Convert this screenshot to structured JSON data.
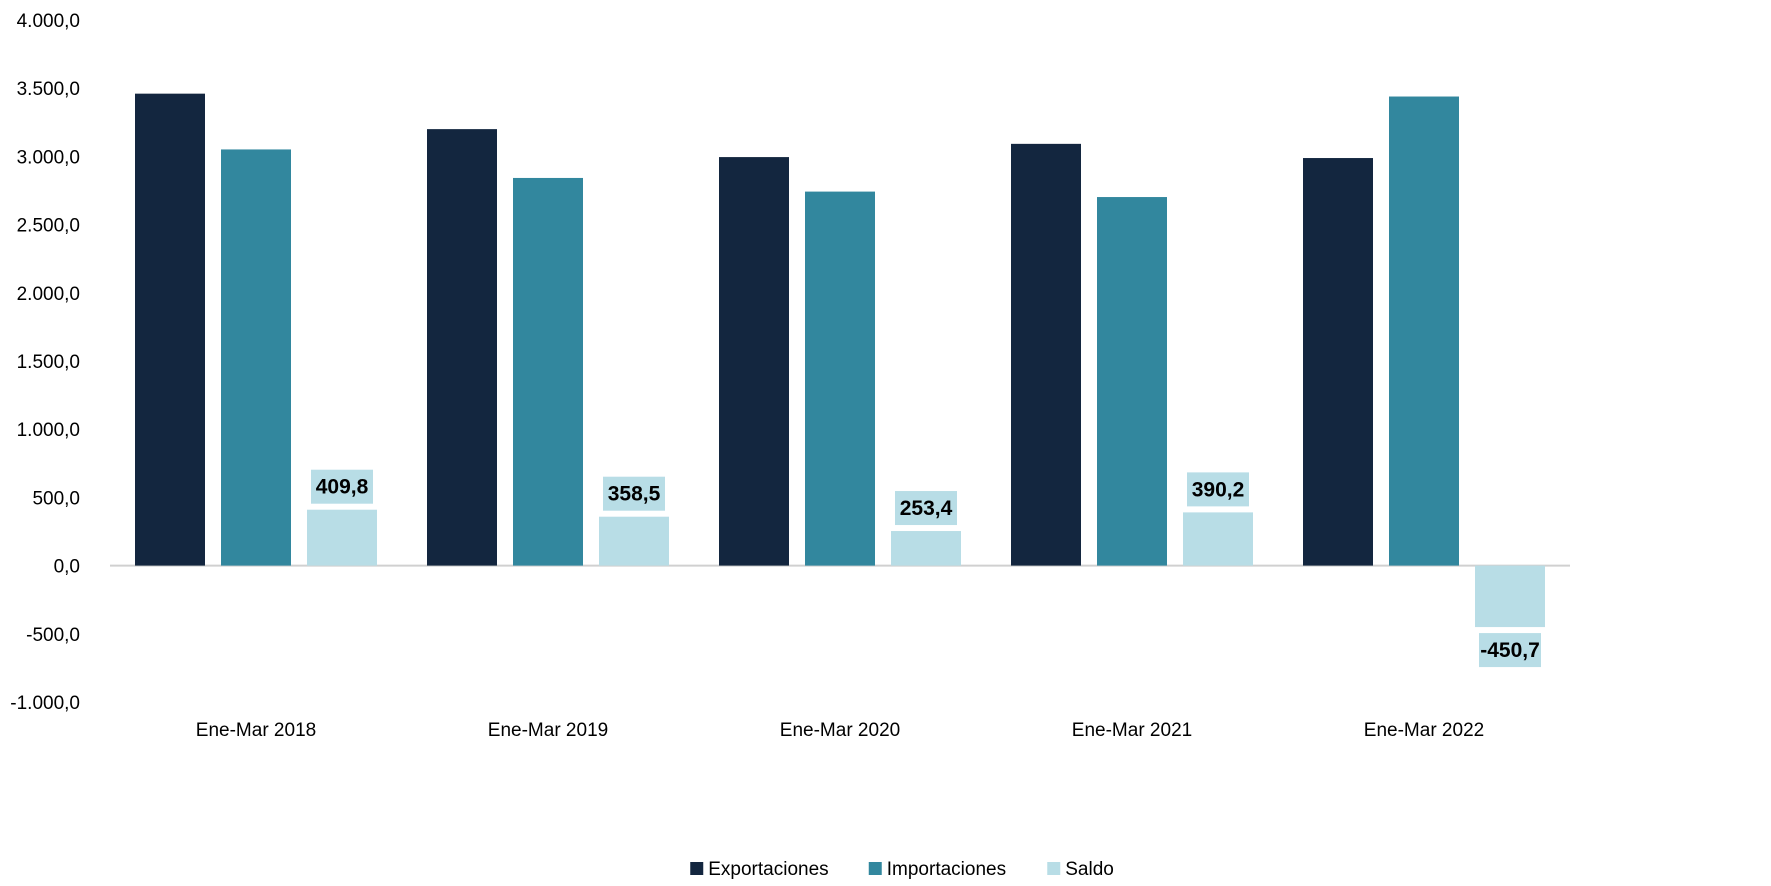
{
  "chart_data": {
    "type": "bar",
    "categories": [
      "Ene-Mar 2018",
      "Ene-Mar 2019",
      "Ene-Mar 2020",
      "Ene-Mar 2021",
      "Ene-Mar 2022"
    ],
    "series": [
      {
        "name": "Exportaciones",
        "color": "#13263f",
        "values": [
          3460,
          3200,
          2995,
          3092,
          2988
        ]
      },
      {
        "name": "Importaciones",
        "color": "#32879e",
        "values": [
          3051,
          2842,
          2742,
          2702,
          3439
        ]
      },
      {
        "name": "Saldo",
        "color": "#b8dde6",
        "values": [
          409.8,
          358.5,
          253.4,
          390.2,
          -450.7
        ],
        "data_labels": [
          "409,8",
          "358,5",
          "253,4",
          "390,2",
          "-450,7"
        ]
      }
    ],
    "ylim": [
      -1000,
      4000
    ],
    "yticks": [
      -1000,
      -500,
      0,
      500,
      1000,
      1500,
      2000,
      2500,
      3000,
      3500,
      4000
    ],
    "ytick_labels": [
      "-1.000,0",
      "-500,0",
      "0,0",
      "500,0",
      "1.000,0",
      "1.500,0",
      "2.000,0",
      "2.500,0",
      "3.000,0",
      "3.500,0",
      "4.000,0"
    ],
    "title": "",
    "xlabel": "",
    "ylabel": "",
    "grid": false,
    "legend_position": "bottom-center"
  }
}
